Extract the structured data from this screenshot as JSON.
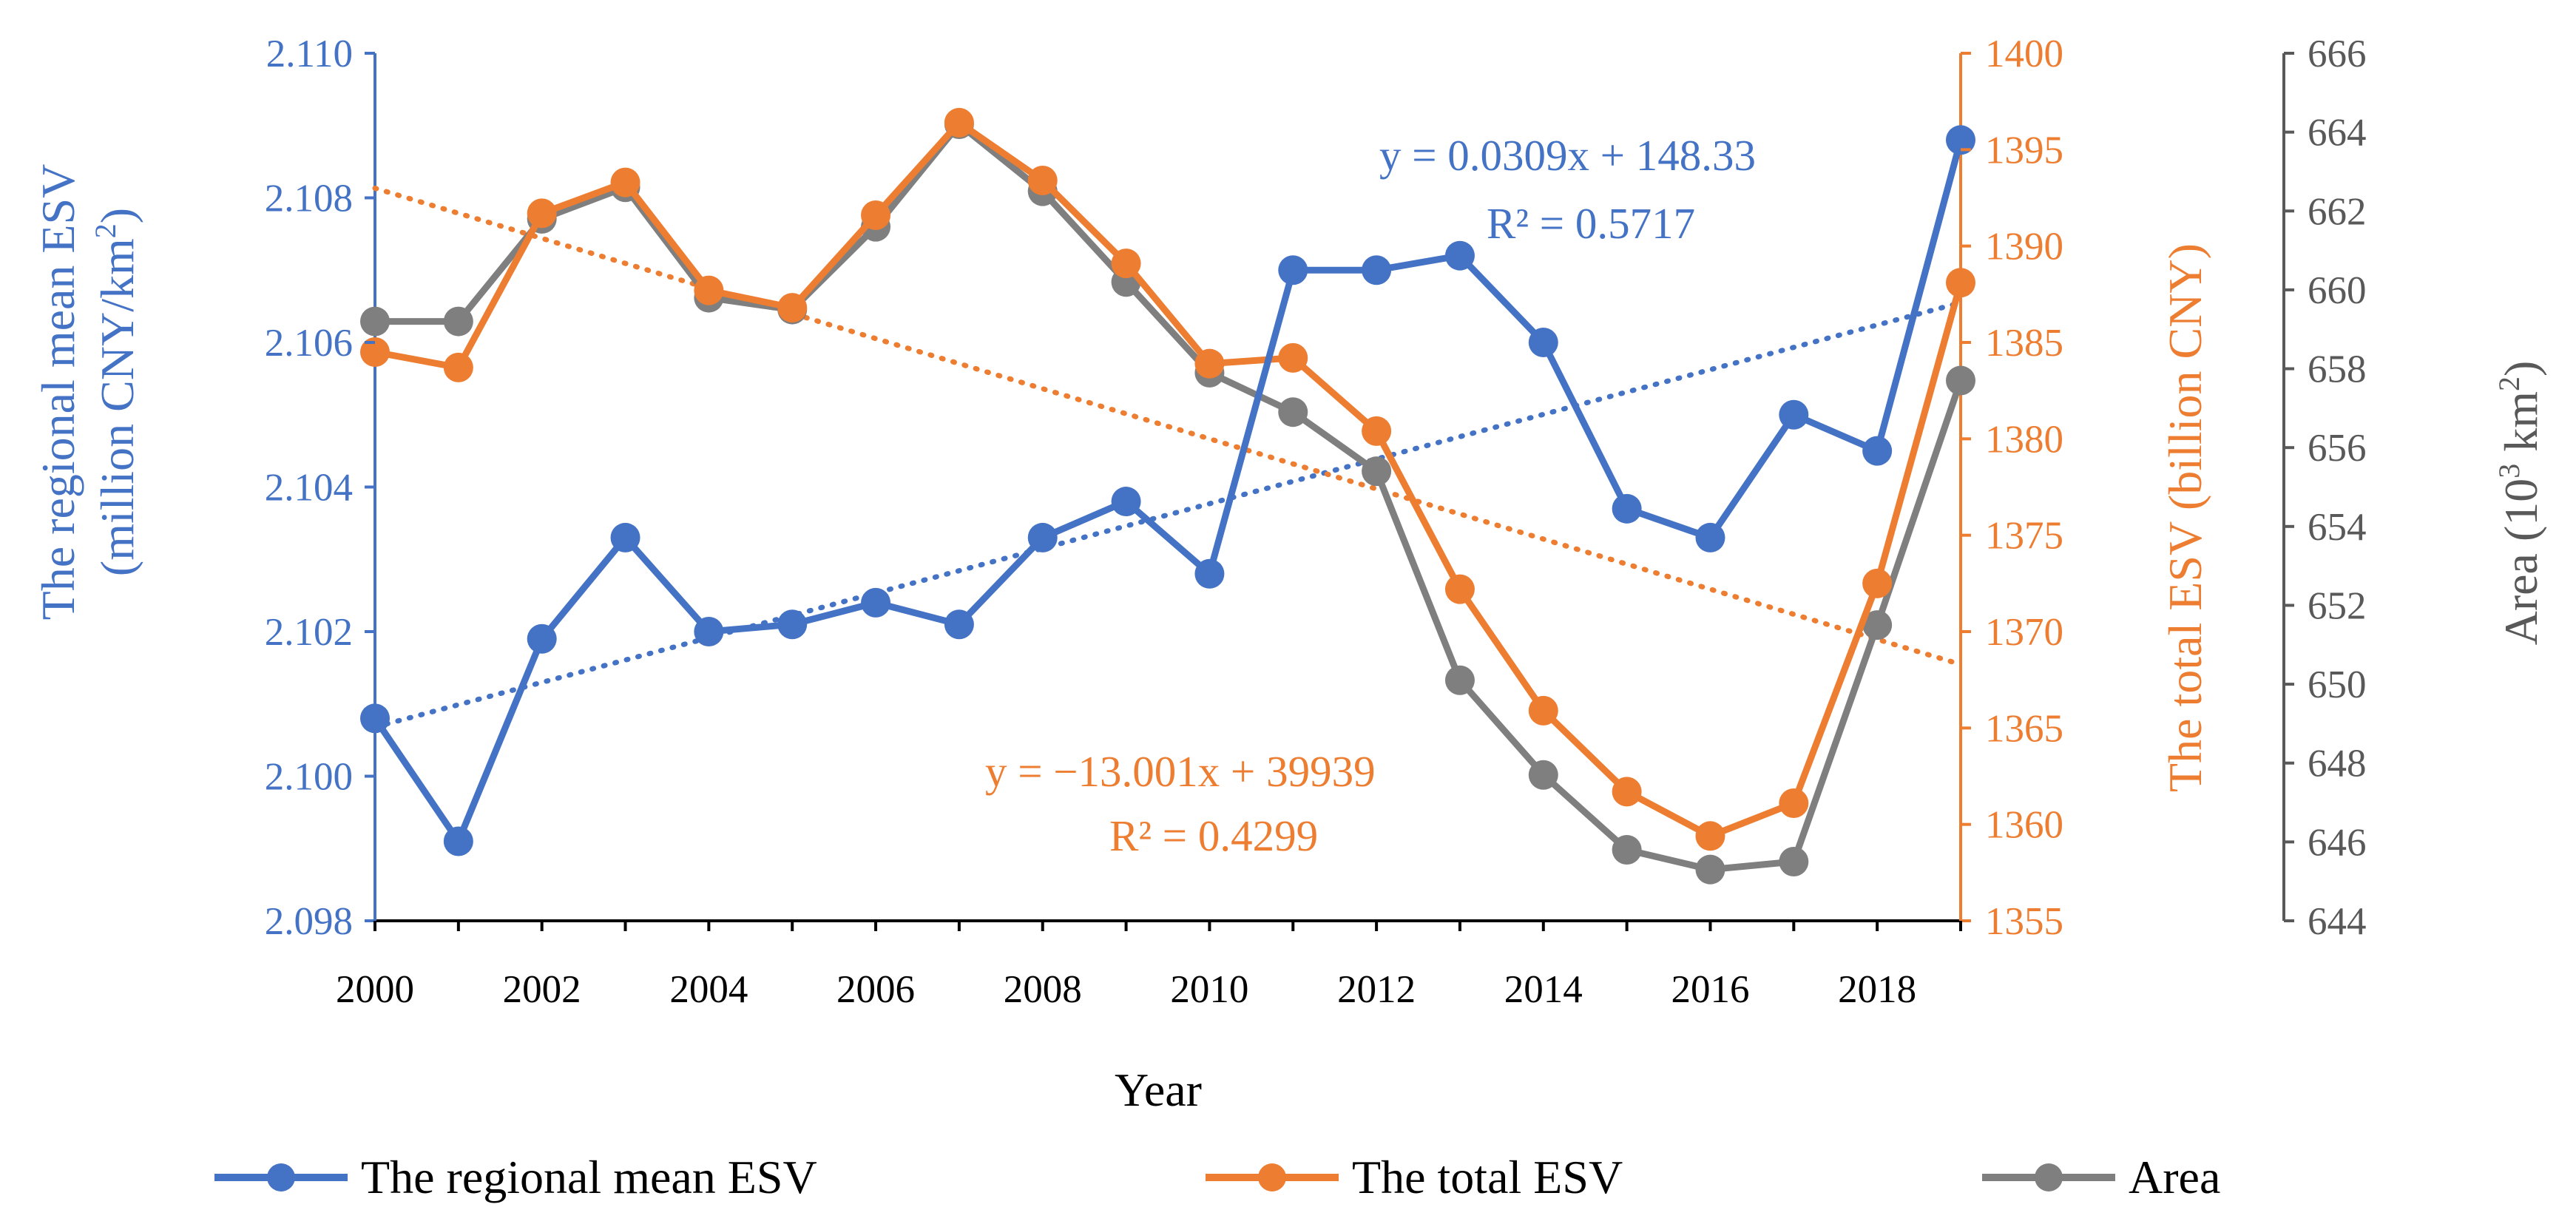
{
  "chart_data": {
    "type": "line",
    "x": [
      2000,
      2001,
      2002,
      2003,
      2004,
      2005,
      2006,
      2007,
      2008,
      2009,
      2010,
      2011,
      2012,
      2013,
      2014,
      2015,
      2016,
      2017,
      2018,
      2019
    ],
    "x_tick_labels": [
      "2000",
      "2002",
      "2004",
      "2006",
      "2008",
      "2010",
      "2012",
      "2014",
      "2016",
      "2018"
    ],
    "xlabel": "Year",
    "colors": {
      "mean": "#4472C4",
      "total": "#ED7D31",
      "area": "#7F7F7F",
      "area_axis": "#595959"
    },
    "axes": {
      "left": {
        "label_line1": "The regional mean  ESV",
        "label_line2_pre": "(million CNY/km",
        "label_line2_sup": "2",
        "label_line2_post": ")",
        "ylim": [
          2.098,
          2.11
        ],
        "ticks": [
          "2.098",
          "2.100",
          "2.102",
          "2.104",
          "2.106",
          "2.108",
          "2.110"
        ]
      },
      "right1": {
        "label": "The total ESV (billion CNY)",
        "ylim": [
          1355,
          1400
        ],
        "ticks": [
          "1355",
          "1360",
          "1365",
          "1370",
          "1375",
          "1380",
          "1385",
          "1390",
          "1395",
          "1400"
        ]
      },
      "right2": {
        "label_pre": "Area (10",
        "label_sup": "3",
        "label_mid": " km",
        "label_sup2": "2",
        "label_post": ")",
        "ylim": [
          644,
          666
        ],
        "ticks": [
          "644",
          "646",
          "648",
          "650",
          "652",
          "654",
          "656",
          "658",
          "660",
          "662",
          "664",
          "666"
        ]
      }
    },
    "series": [
      {
        "key": "mean",
        "name": "The regional mean ESV",
        "axis": "left",
        "values": [
          2.1008,
          2.0991,
          2.1019,
          2.1033,
          2.102,
          2.1021,
          2.1024,
          2.1021,
          2.1033,
          2.1038,
          2.1028,
          2.107,
          2.107,
          2.1072,
          2.106,
          2.1037,
          2.1033,
          2.105,
          2.1045,
          2.1088
        ]
      },
      {
        "key": "total",
        "name": "The total ESV",
        "axis": "right1",
        "values": [
          1384.5,
          1383.7,
          1391.7,
          1393.3,
          1387.7,
          1386.8,
          1391.6,
          1396.4,
          1393.4,
          1389.1,
          1383.9,
          1384.2,
          1380.4,
          1372.2,
          1365.9,
          1361.7,
          1359.4,
          1361.1,
          1372.5,
          1388.1
        ]
      },
      {
        "key": "area",
        "name": "Area",
        "axis": "right2",
        "values": [
          659.2,
          659.2,
          661.8,
          662.6,
          659.8,
          659.5,
          661.6,
          664.2,
          662.5,
          660.2,
          657.9,
          656.9,
          655.4,
          650.1,
          647.7,
          645.8,
          645.3,
          645.5,
          651.5,
          657.7
        ]
      }
    ],
    "trendlines": [
      {
        "series": "mean",
        "equation": "y = 0.0309x + 148.33",
        "r2": "R² = 0.5717",
        "start": 2.10068,
        "end": 2.10655
      },
      {
        "series": "total",
        "equation": "y = −13.001x + 39939",
        "r2": "R² = 0.4299",
        "start": 1393.0,
        "end": 1368.3
      }
    ]
  }
}
